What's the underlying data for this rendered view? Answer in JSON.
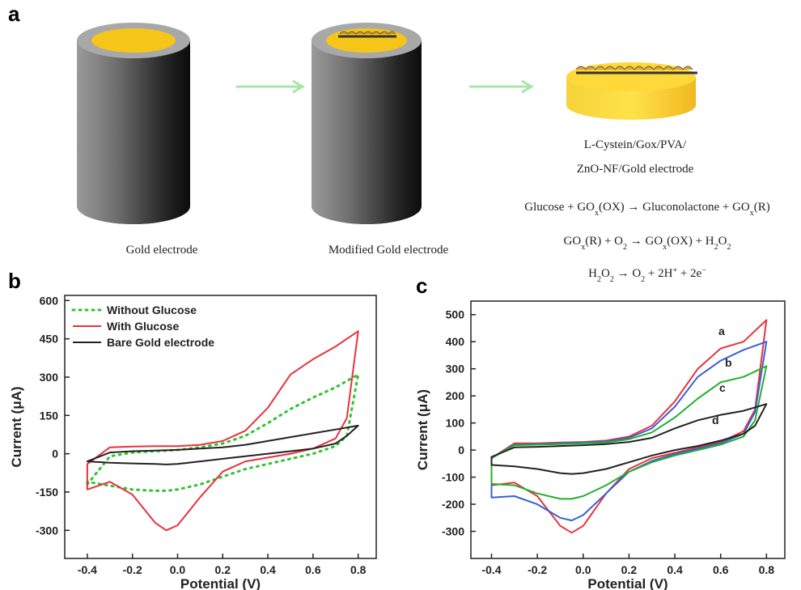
{
  "panel_labels": [
    "a",
    "b",
    "c"
  ],
  "diagram": {
    "electrode_labels": [
      "Gold electrode",
      "Modified Gold electrode"
    ],
    "product_label": [
      "L-Cystein/Gox/PVA/",
      "ZnO-NF/Gold electrode"
    ],
    "equations": [
      [
        {
          "t": "Glucose + GO"
        },
        {
          "t": "x",
          "s": "sub"
        },
        {
          "t": "(OX) → Gluconolactone + GO"
        },
        {
          "t": "x",
          "s": "sub"
        },
        {
          "t": "(R)"
        }
      ],
      [
        {
          "t": "GO"
        },
        {
          "t": "x",
          "s": "sub"
        },
        {
          "t": "(R) + O"
        },
        {
          "t": "2",
          "s": "sub"
        },
        {
          "t": " → GO"
        },
        {
          "t": "x",
          "s": "sub"
        },
        {
          "t": "(OX) + H"
        },
        {
          "t": "2",
          "s": "sub"
        },
        {
          "t": "O"
        },
        {
          "t": "2",
          "s": "sub"
        }
      ],
      [
        {
          "t": "H"
        },
        {
          "t": "2",
          "s": "sub"
        },
        {
          "t": "O"
        },
        {
          "t": "2",
          "s": "sub"
        },
        {
          "t": " → O"
        },
        {
          "t": "2",
          "s": "sub"
        },
        {
          "t": " + 2H"
        },
        {
          "t": "+",
          "s": "super"
        },
        {
          "t": " + 2e"
        },
        {
          "t": "−",
          "s": "super"
        }
      ]
    ]
  },
  "chart_data": [
    {
      "type": "line",
      "x_label": "Potential (V)",
      "y_label": "Current (μA)",
      "x": [
        -0.4,
        -0.3,
        -0.2,
        -0.1,
        0,
        0.1,
        0.2,
        0.3,
        0.4,
        0.5,
        0.6,
        0.7,
        0.8,
        0.75,
        0.7,
        0.6,
        0.5,
        0.4,
        0.3,
        0.2,
        0.1,
        0,
        -0.05,
        -0.1,
        -0.2,
        -0.3,
        -0.4
      ],
      "xlim": [
        -0.5,
        0.88
      ],
      "ylim": [
        -410,
        620
      ],
      "xticks": [
        -0.4,
        -0.2,
        {
          "value": 0,
          "label": "0.0"
        },
        0.2,
        0.4,
        0.6,
        0.8
      ],
      "yticks": [
        -300,
        -150,
        0,
        150,
        300,
        450,
        600
      ],
      "legend": "upper left",
      "series": [
        {
          "name": "Without Glucose",
          "color": "#2ec42e",
          "dash": "dotted",
          "values": [
            -120,
            -10,
            5,
            10,
            15,
            25,
            40,
            70,
            120,
            175,
            220,
            260,
            310,
            70,
            30,
            0,
            -20,
            -40,
            -60,
            -90,
            -120,
            -140,
            -145,
            -145,
            -140,
            -125,
            -110
          ]
        },
        {
          "name": "With Glucose",
          "color": "#e8323c",
          "values": [
            -40,
            25,
            28,
            30,
            30,
            35,
            50,
            90,
            180,
            310,
            370,
            420,
            480,
            140,
            60,
            20,
            0,
            -15,
            -30,
            -70,
            -170,
            -280,
            -300,
            -270,
            -160,
            -110,
            -140
          ]
        },
        {
          "name": "Bare Gold electrode",
          "color": "#222222",
          "values": [
            -30,
            5,
            10,
            12,
            15,
            20,
            25,
            35,
            50,
            65,
            80,
            95,
            110,
            70,
            40,
            20,
            10,
            0,
            -10,
            -20,
            -30,
            -40,
            -42,
            -40,
            -38,
            -35,
            -30
          ]
        }
      ]
    },
    {
      "type": "line",
      "x_label": "Potential (V)",
      "y_label": "Current (μA)",
      "x": [
        -0.4,
        -0.3,
        -0.2,
        -0.1,
        0,
        0.1,
        0.2,
        0.3,
        0.4,
        0.5,
        0.6,
        0.7,
        0.8,
        0.75,
        0.7,
        0.6,
        0.5,
        0.4,
        0.3,
        0.2,
        0.1,
        0,
        -0.05,
        -0.1,
        -0.2,
        -0.3,
        -0.4
      ],
      "xlim": [
        -0.49,
        0.88
      ],
      "ylim": [
        -400,
        550
      ],
      "xticks": [
        -0.4,
        -0.2,
        {
          "value": 0,
          "label": "0.0"
        },
        0.2,
        0.4,
        0.6,
        0.8
      ],
      "yticks": [
        -300,
        -200,
        -100,
        0,
        100,
        200,
        300,
        400,
        500
      ],
      "legend": "inline",
      "series": [
        {
          "name": "a",
          "color": "#e8323c",
          "values": [
            -30,
            25,
            25,
            28,
            30,
            35,
            50,
            90,
            180,
            300,
            375,
            400,
            480,
            150,
            70,
            30,
            10,
            -10,
            -30,
            -70,
            -160,
            -280,
            -305,
            -280,
            -170,
            -120,
            -130
          ]
        },
        {
          "name": "b",
          "color": "#3a5fd8",
          "values": [
            -30,
            20,
            22,
            25,
            28,
            32,
            45,
            80,
            160,
            270,
            330,
            370,
            400,
            140,
            60,
            25,
            5,
            -15,
            -40,
            -80,
            -160,
            -240,
            -260,
            -250,
            -200,
            -170,
            -175
          ]
        },
        {
          "name": "c",
          "color": "#22b02c",
          "values": [
            -30,
            18,
            20,
            22,
            25,
            28,
            40,
            65,
            120,
            190,
            250,
            270,
            310,
            110,
            50,
            20,
            0,
            -20,
            -45,
            -80,
            -130,
            -170,
            -180,
            -180,
            -160,
            -130,
            -125
          ]
        },
        {
          "name": "d",
          "color": "#222222",
          "values": [
            -25,
            10,
            12,
            15,
            18,
            22,
            30,
            45,
            80,
            110,
            130,
            145,
            170,
            90,
            60,
            35,
            15,
            0,
            -20,
            -45,
            -70,
            -85,
            -88,
            -85,
            -70,
            -60,
            -55
          ]
        }
      ]
    }
  ]
}
